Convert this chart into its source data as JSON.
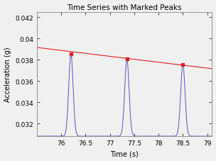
{
  "title": "Time Series with Marked Peaks",
  "xlabel": "Time (s)",
  "ylabel": "Acceleration (g)",
  "xlim": [
    75.5,
    79.1
  ],
  "ylim": [
    0.0308,
    0.0425
  ],
  "yticks": [
    0.032,
    0.034,
    0.036,
    0.038,
    0.04,
    0.042
  ],
  "ytick_labels": [
    "0.032",
    "0.034",
    "0.036",
    "0.038",
    "0.04",
    "0.042"
  ],
  "xticks": [
    76,
    76.5,
    77,
    77.5,
    78,
    78.5,
    79
  ],
  "xtick_labels": [
    "76",
    "76.5",
    "77",
    "77.5",
    "78",
    "78.5",
    "79"
  ],
  "peak_times": [
    76.2,
    77.35,
    78.5
  ],
  "peak_values": [
    0.03855,
    0.03805,
    0.03755
  ],
  "red_line_x": [
    75.5,
    79.1
  ],
  "red_line_y": [
    0.03915,
    0.03715
  ],
  "blue_color": "#5555BB",
  "red_color": "#DD2222",
  "bg_color": "#F0F0F0",
  "plot_bg": "#F0F0F0",
  "peak_sigma": 0.045,
  "base_value": 0.0308
}
